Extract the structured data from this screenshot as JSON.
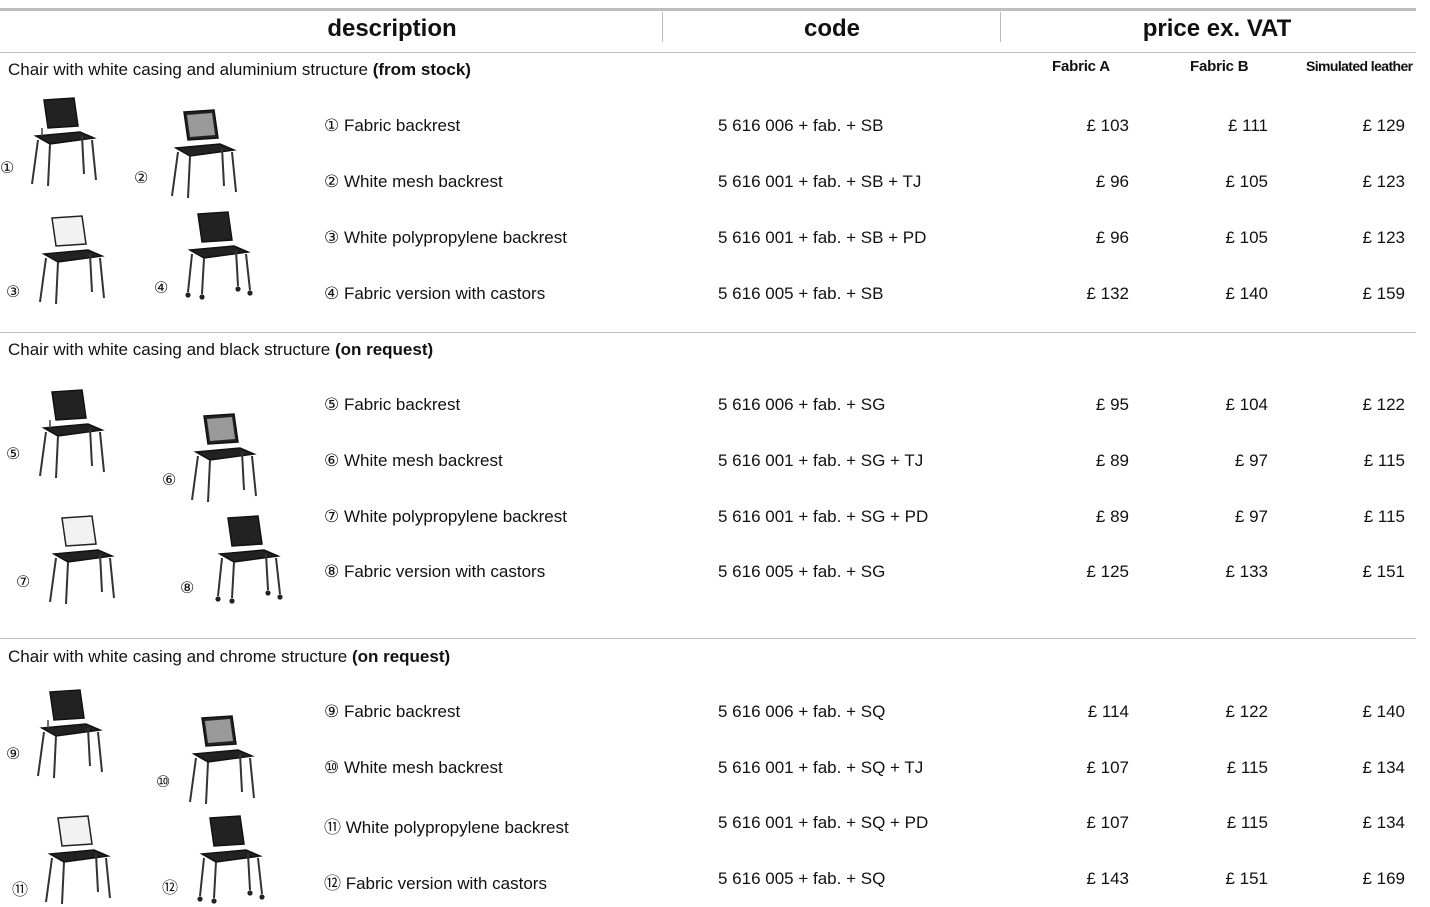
{
  "header": {
    "description": "description",
    "code": "code",
    "price": "price ex. VAT",
    "fabric_a": "Fabric A",
    "fabric_b": "Fabric B",
    "simulated_leather": "Simulated leather"
  },
  "sections": [
    {
      "title": "Chair with white casing and aluminium structure ",
      "note": "(from stock)",
      "rows": [
        {
          "desc": "① Fabric backrest",
          "code": "5 616 006 + fab. + SB",
          "a": "£ 103",
          "b": "£ 111",
          "l": "£ 129"
        },
        {
          "desc": "② White mesh backrest",
          "code": "5 616 001 + fab. + SB + TJ",
          "a": "£ 96",
          "b": "£ 105",
          "l": "£ 123"
        },
        {
          "desc": "③ White polypropylene backrest",
          "code": "5 616 001 + fab. + SB + PD",
          "a": "£ 96",
          "b": "£ 105",
          "l": "£ 123"
        },
        {
          "desc": "④ Fabric version with castors",
          "code": "5 616 005 + fab. + SB",
          "a": "£ 132",
          "b": "£ 140",
          "l": "£ 159"
        }
      ],
      "chair_labels": [
        "①",
        "②",
        "③",
        "④"
      ]
    },
    {
      "title": "Chair with white casing and black structure ",
      "note": "(on request)",
      "rows": [
        {
          "desc": "⑤ Fabric backrest",
          "code": "5 616 006 + fab. + SG",
          "a": "£ 95",
          "b": "£ 104",
          "l": "£ 122"
        },
        {
          "desc": "⑥ White mesh backrest",
          "code": "5 616 001 + fab. + SG + TJ",
          "a": "£ 89",
          "b": "£ 97",
          "l": "£ 115"
        },
        {
          "desc": "⑦ White polypropylene backrest",
          "code": "5 616 001 + fab. + SG + PD",
          "a": "£ 89",
          "b": "£ 97",
          "l": "£ 115"
        },
        {
          "desc": "⑧ Fabric version with castors",
          "code": "5 616 005 + fab. + SG",
          "a": "£ 125",
          "b": "£ 133",
          "l": "£ 151"
        }
      ],
      "chair_labels": [
        "⑤",
        "⑥",
        "⑦",
        "⑧"
      ]
    },
    {
      "title": "Chair with white casing and chrome structure ",
      "note": "(on request)",
      "rows": [
        {
          "desc": "⑨ Fabric backrest",
          "code": "5 616 006 + fab. + SQ",
          "a": "£ 114",
          "b": "£ 122",
          "l": "£ 140"
        },
        {
          "desc": "⑩ White mesh backrest",
          "code": "5 616 001 + fab. + SQ + TJ",
          "a": "£ 107",
          "b": "£ 115",
          "l": "£ 134"
        },
        {
          "desc": "⑪ White polypropylene backrest",
          "code": "5 616 001 + fab. + SQ + PD",
          "a": "£ 107",
          "b": "£ 115",
          "l": "£ 134"
        },
        {
          "desc": "⑫ Fabric version with castors",
          "code": "5 616 005 + fab. + SQ",
          "a": "£ 143",
          "b": "£ 151",
          "l": "£ 169"
        }
      ],
      "chair_labels": [
        "⑨",
        "⑩",
        "⑪",
        "⑫"
      ]
    }
  ],
  "colors": {
    "rule": "#bdbdbd",
    "seat": "#222222",
    "mesh": "#9a9a9a",
    "white_back": "#f2f2f2"
  }
}
